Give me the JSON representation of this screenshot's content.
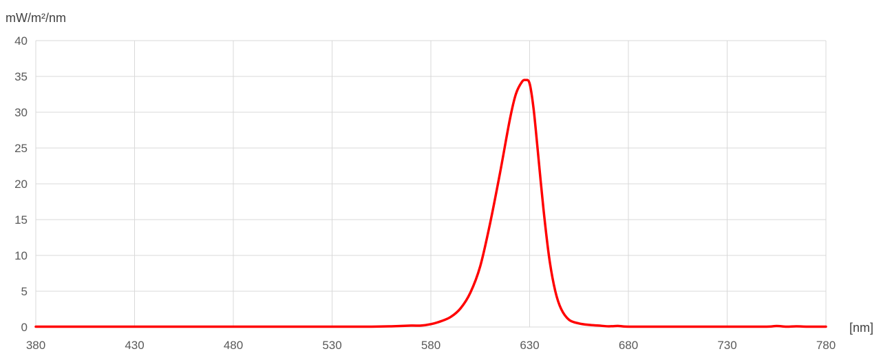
{
  "chart_data": {
    "type": "line",
    "ylabel": "mW/m²/nm",
    "xlabel": "[nm]",
    "xlim": [
      380,
      780
    ],
    "ylim": [
      0,
      40
    ],
    "x_ticks": [
      380,
      430,
      480,
      530,
      580,
      630,
      680,
      730,
      780
    ],
    "y_ticks": [
      0,
      5,
      10,
      15,
      20,
      25,
      30,
      35,
      40
    ],
    "grid": true,
    "line_color": "#ff0000",
    "series": [
      {
        "x": [
          380,
          400,
          430,
          460,
          500,
          530,
          550,
          560,
          570,
          575,
          580,
          585,
          590,
          595,
          600,
          605,
          610,
          615,
          620,
          623,
          626,
          628,
          630,
          632,
          634,
          637,
          640,
          643,
          646,
          650,
          655,
          660,
          665,
          670,
          675,
          680,
          700,
          730,
          750,
          755,
          760,
          765,
          770,
          780
        ],
        "y": [
          0.05,
          0.05,
          0.05,
          0.05,
          0.05,
          0.05,
          0.05,
          0.1,
          0.2,
          0.2,
          0.4,
          0.8,
          1.4,
          2.6,
          4.8,
          8.5,
          14.5,
          21.5,
          29.0,
          32.5,
          34.2,
          34.5,
          34.0,
          30.5,
          25.0,
          16.5,
          9.5,
          5.0,
          2.5,
          1.0,
          0.5,
          0.3,
          0.2,
          0.1,
          0.15,
          0.05,
          0.05,
          0.05,
          0.05,
          0.15,
          0.05,
          0.1,
          0.05,
          0.05
        ]
      }
    ]
  }
}
